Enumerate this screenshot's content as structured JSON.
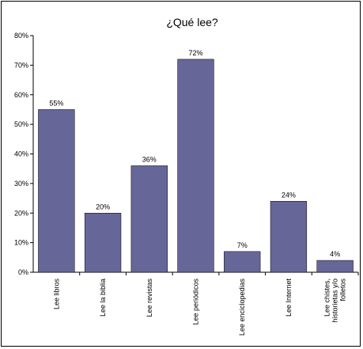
{
  "chart_data": {
    "type": "bar",
    "title": "¿Qué lee?",
    "categories": [
      [
        "Lee libros"
      ],
      [
        "Lee la biblia"
      ],
      [
        "Lee revistas"
      ],
      [
        "Lee periódicos"
      ],
      [
        "Lee enciclopedias"
      ],
      [
        "Lee Internet"
      ],
      [
        "Lee chistes,",
        "historietas y/o",
        "folletos"
      ]
    ],
    "values": [
      55,
      20,
      36,
      72,
      7,
      24,
      4
    ],
    "data_labels": [
      "55%",
      "20%",
      "36%",
      "72%",
      "7%",
      "24%",
      "4%"
    ],
    "ylim": [
      0,
      80
    ],
    "yticks": [
      0,
      10,
      20,
      30,
      40,
      50,
      60,
      70,
      80
    ],
    "ytick_labels": [
      "0%",
      "10%",
      "20%",
      "30%",
      "40%",
      "50%",
      "60%",
      "70%",
      "80%"
    ],
    "grid": false,
    "legend": false,
    "colors": {
      "bar": "#666699",
      "bar_edge": "#000000",
      "axis": "#000000"
    }
  }
}
